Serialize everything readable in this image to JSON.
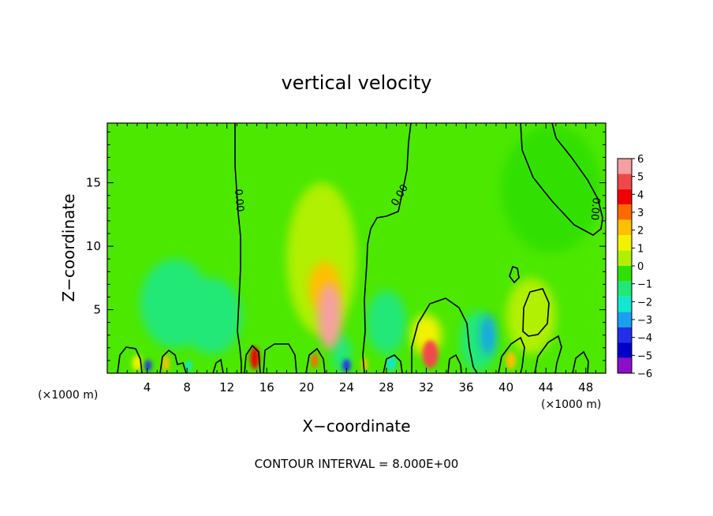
{
  "chart_data": {
    "type": "heatmap",
    "title": "vertical velocity",
    "xlabel": "X−coordinate",
    "ylabel": "Z−coordinate",
    "x_unit_left": "(×1000 m)",
    "x_unit_right": "(×1000 m)",
    "xlim": [
      0,
      50
    ],
    "ylim": [
      0,
      19.7
    ],
    "x_ticks": [
      4,
      8,
      12,
      16,
      20,
      24,
      28,
      32,
      36,
      40,
      44,
      48
    ],
    "x_tick_labels": [
      "4",
      "8",
      "12",
      "16",
      "20",
      "24",
      "28",
      "32",
      "36",
      "40",
      "44",
      "48"
    ],
    "y_ticks": [
      5,
      10,
      15
    ],
    "y_tick_labels": [
      "5",
      "10",
      "15"
    ],
    "colorbar": {
      "min": -6,
      "max": 6,
      "labels": [
        "6",
        "5",
        "4",
        "3",
        "2",
        "1",
        "0",
        "−1",
        "−2",
        "−3",
        "−4",
        "−5",
        "−6"
      ],
      "colors": [
        "#f4a0a0",
        "#f04848",
        "#f00000",
        "#ff6a00",
        "#ffc000",
        "#f2f200",
        "#b0f000",
        "#30e000",
        "#20e878",
        "#10e8d0",
        "#18a0f0",
        "#2030e8",
        "#0000c8",
        "#8a10c8"
      ]
    },
    "contour_label": "0.00",
    "footnote": "CONTOUR INTERVAL = 8.000E+00",
    "features": [
      {
        "x": 22.3,
        "z": 4.5,
        "w": 1.2,
        "h": 2.6,
        "value": 5.5
      },
      {
        "x": 21.8,
        "z": 6.8,
        "w": 1.6,
        "h": 2.0,
        "value": 1.8
      },
      {
        "x": 21.5,
        "z": 9.0,
        "w": 3.5,
        "h": 6.0,
        "value": 0.5
      },
      {
        "x": 14.8,
        "z": 1.2,
        "w": 0.45,
        "h": 0.9,
        "value": 4.0
      },
      {
        "x": 32.4,
        "z": 1.5,
        "w": 0.8,
        "h": 1.1,
        "value": 4.8
      },
      {
        "x": 32.0,
        "z": 3.0,
        "w": 1.5,
        "h": 1.6,
        "value": 1.5
      },
      {
        "x": 20.8,
        "z": 1.0,
        "w": 0.35,
        "h": 0.6,
        "value": 3.0
      },
      {
        "x": 25.8,
        "z": 0.7,
        "w": 0.3,
        "h": 0.5,
        "value": 2.5
      },
      {
        "x": 5.9,
        "z": 0.8,
        "w": 0.35,
        "h": 0.6,
        "value": 2.5
      },
      {
        "x": 3.0,
        "z": 0.8,
        "w": 0.5,
        "h": 0.6,
        "value": 1.5
      },
      {
        "x": 40.5,
        "z": 1.0,
        "w": 0.5,
        "h": 0.7,
        "value": 2.2
      },
      {
        "x": 38.2,
        "z": 3.0,
        "w": 0.7,
        "h": 1.6,
        "value": -3.0
      },
      {
        "x": 37.2,
        "z": 2.5,
        "w": 1.8,
        "h": 2.4,
        "value": -1.5
      },
      {
        "x": 24.0,
        "z": 0.6,
        "w": 0.4,
        "h": 0.5,
        "value": -3.5
      },
      {
        "x": 4.1,
        "z": 0.6,
        "w": 0.35,
        "h": 0.45,
        "value": -3.5
      },
      {
        "x": 8.2,
        "z": 0.6,
        "w": 0.3,
        "h": 0.45,
        "value": -2.5
      },
      {
        "x": 6.8,
        "z": 5.5,
        "w": 3.5,
        "h": 3.5,
        "value": -1.6
      },
      {
        "x": 10.5,
        "z": 4.5,
        "w": 3.0,
        "h": 3.0,
        "value": -1.0
      },
      {
        "x": 28.0,
        "z": 4.0,
        "w": 2.0,
        "h": 2.5,
        "value": -1.2
      },
      {
        "x": 23.5,
        "z": 1.5,
        "w": 1.0,
        "h": 1.5,
        "value": -1.5
      },
      {
        "x": 28.5,
        "z": 0.8,
        "w": 0.5,
        "h": 0.6,
        "value": -2.0
      },
      {
        "x": 44.5,
        "z": 14.5,
        "w": 5.0,
        "h": 5.0,
        "value": -0.6
      },
      {
        "x": 42.5,
        "z": 4.5,
        "w": 2.5,
        "h": 3.0,
        "value": 0.6
      }
    ]
  }
}
